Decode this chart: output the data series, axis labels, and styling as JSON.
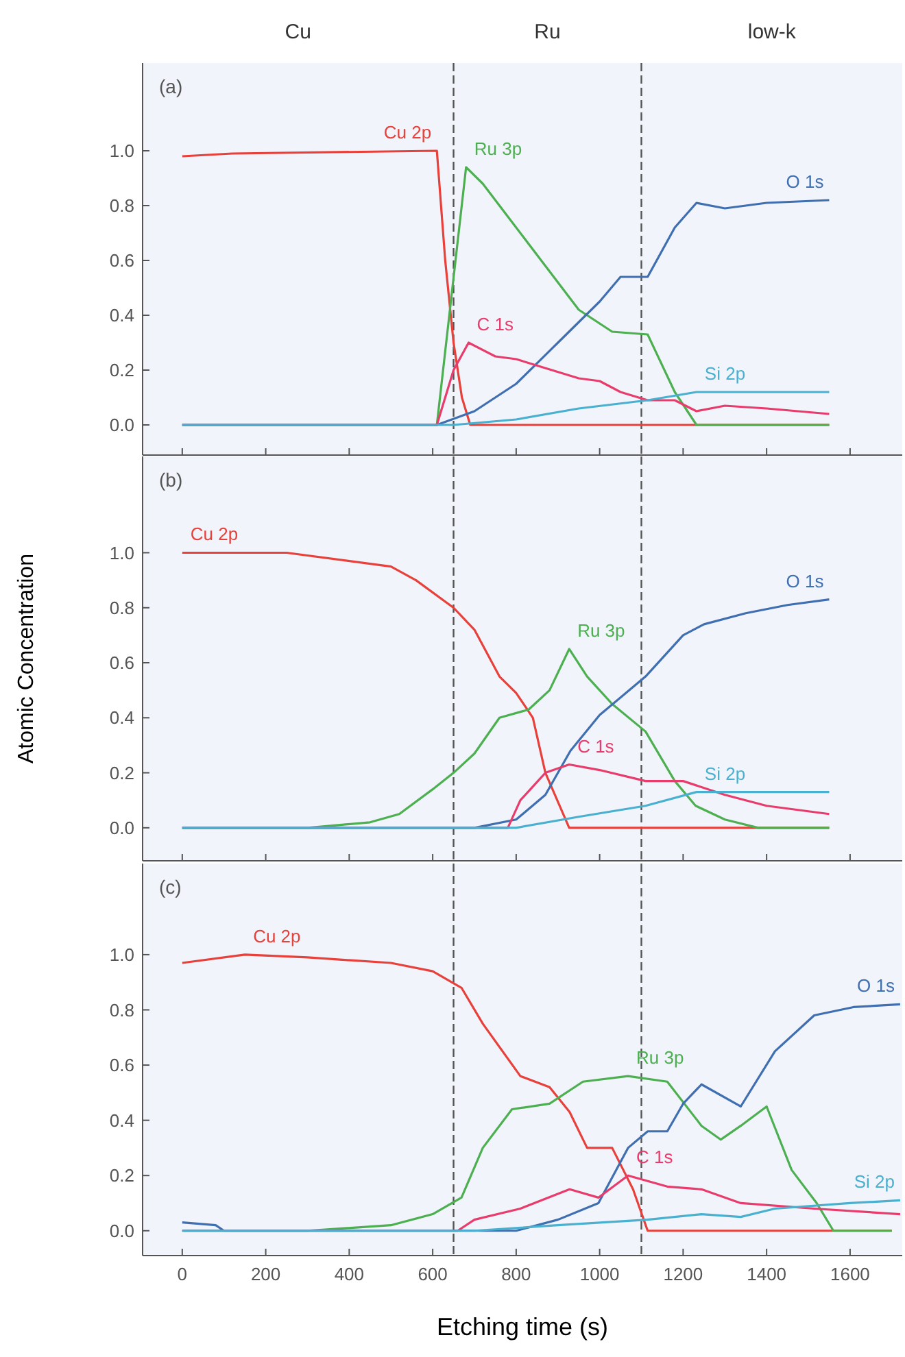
{
  "chart_data": [
    {
      "type": "line",
      "title": "(a)",
      "xlim": [
        -95,
        1725
      ],
      "ylim": [
        -0.11,
        1.32
      ],
      "tick_labels": "y",
      "xticks": [
        0,
        200,
        400,
        600,
        800,
        1000,
        1200,
        1400,
        1600
      ],
      "yticks": [
        {
          "value": 0,
          "label": "0.0"
        },
        {
          "value": 0.2,
          "label": "0.2"
        },
        {
          "value": 0.4,
          "label": "0.4"
        },
        {
          "value": 0.6,
          "label": "0.6"
        },
        {
          "value": 0.8,
          "label": "0.8"
        },
        {
          "value": 1,
          "label": "1.0"
        }
      ],
      "ref_lines": [
        {
          "axis": "x",
          "value": 650,
          "line_style": "dashed",
          "color": "#555555"
        },
        {
          "axis": "x",
          "value": 1100,
          "line_style": "dashed",
          "color": "#555555"
        }
      ],
      "series": [
        {
          "name": "Cu 2p",
          "color": "#e8403a",
          "x": [
            0,
            120,
            610,
            630,
            650,
            670,
            690,
            1550
          ],
          "values": [
            0.98,
            0.99,
            1.0,
            0.6,
            0.3,
            0.1,
            0,
            0
          ]
        },
        {
          "name": "Ru 3p",
          "color": "#4caf50",
          "x": [
            0,
            610,
            680,
            720,
            780,
            850,
            950,
            1030,
            1115,
            1180,
            1232,
            1550
          ],
          "values": [
            0,
            0,
            0.94,
            0.88,
            0.76,
            0.62,
            0.42,
            0.34,
            0.33,
            0.12,
            0,
            0
          ]
        },
        {
          "name": "O 1s",
          "color": "#3f6fb0",
          "x": [
            0,
            610,
            700,
            800,
            900,
            1000,
            1050,
            1115,
            1180,
            1232,
            1300,
            1400,
            1550
          ],
          "values": [
            0,
            0,
            0.05,
            0.15,
            0.3,
            0.45,
            0.54,
            0.54,
            0.72,
            0.81,
            0.79,
            0.81,
            0.82
          ]
        },
        {
          "name": "C 1s",
          "color": "#e83c6c",
          "x": [
            0,
            610,
            650,
            686,
            750,
            800,
            950,
            1000,
            1050,
            1115,
            1180,
            1232,
            1300,
            1400,
            1550
          ],
          "values": [
            0,
            0,
            0.2,
            0.3,
            0.25,
            0.24,
            0.17,
            0.16,
            0.12,
            0.09,
            0.09,
            0.05,
            0.07,
            0.06,
            0.04
          ]
        },
        {
          "name": "Si 2p",
          "color": "#4ab0d0",
          "x": [
            0,
            650,
            800,
            950,
            1115,
            1232,
            1400,
            1550
          ],
          "values": [
            0,
            0,
            0.02,
            0.06,
            0.09,
            0.12,
            0.12,
            0.12
          ]
        }
      ],
      "annotations": [
        "Cu",
        "Ru",
        "low-k"
      ]
    },
    {
      "type": "line",
      "title": "(b)",
      "ylabel": "Atomic Concentration",
      "xlim": [
        -95,
        1725
      ],
      "ylim": [
        -0.12,
        1.35
      ],
      "xticks": [
        0,
        200,
        400,
        600,
        800,
        1000,
        1200,
        1400,
        1600
      ],
      "yticks": [
        {
          "value": 0,
          "label": "0.0"
        },
        {
          "value": 0.2,
          "label": "0.2"
        },
        {
          "value": 0.4,
          "label": "0.4"
        },
        {
          "value": 0.6,
          "label": "0.6"
        },
        {
          "value": 0.8,
          "label": "0.8"
        },
        {
          "value": 1,
          "label": "1.0"
        }
      ],
      "ref_lines": [
        {
          "axis": "x",
          "value": 650,
          "line_style": "dashed",
          "color": "#555555"
        },
        {
          "axis": "x",
          "value": 1100,
          "line_style": "dashed",
          "color": "#555555"
        }
      ],
      "series": [
        {
          "name": "Cu 2p",
          "color": "#e8403a",
          "x": [
            0,
            250,
            500,
            560,
            650,
            700,
            760,
            800,
            840,
            870,
            927,
            1550
          ],
          "values": [
            1.0,
            1.0,
            0.95,
            0.9,
            0.8,
            0.72,
            0.55,
            0.49,
            0.4,
            0.2,
            0,
            0
          ]
        },
        {
          "name": "Ru 3p",
          "color": "#4caf50",
          "x": [
            0,
            300,
            450,
            520,
            600,
            650,
            700,
            760,
            830,
            880,
            927,
            970,
            1030,
            1110,
            1180,
            1230,
            1300,
            1380,
            1550
          ],
          "values": [
            0,
            0,
            0.02,
            0.05,
            0.14,
            0.2,
            0.27,
            0.4,
            0.43,
            0.5,
            0.65,
            0.55,
            0.45,
            0.35,
            0.17,
            0.08,
            0.03,
            0,
            0
          ]
        },
        {
          "name": "O 1s",
          "color": "#3f6fb0",
          "x": [
            0,
            700,
            800,
            870,
            930,
            1000,
            1110,
            1200,
            1250,
            1350,
            1450,
            1550
          ],
          "values": [
            0,
            0,
            0.03,
            0.12,
            0.28,
            0.41,
            0.55,
            0.7,
            0.74,
            0.78,
            0.81,
            0.83
          ]
        },
        {
          "name": "C 1s",
          "color": "#e83c6c",
          "x": [
            0,
            780,
            810,
            870,
            927,
            1000,
            1110,
            1200,
            1300,
            1400,
            1550
          ],
          "values": [
            0,
            0,
            0.1,
            0.2,
            0.23,
            0.21,
            0.17,
            0.17,
            0.12,
            0.08,
            0.05
          ]
        },
        {
          "name": "Si 2p",
          "color": "#4ab0d0",
          "x": [
            0,
            800,
            950,
            1110,
            1232,
            1550
          ],
          "values": [
            0,
            0,
            0.04,
            0.08,
            0.13,
            0.13
          ]
        }
      ],
      "tick_labels": "y"
    },
    {
      "type": "line",
      "xlabel": "Etching time (s)",
      "xlim": [
        -95,
        1725
      ],
      "ylim": [
        -0.09,
        1.33
      ],
      "xticks": [
        0,
        200,
        400,
        600,
        800,
        1000,
        1200,
        1400,
        1600
      ],
      "yticks": [
        {
          "value": 0,
          "label": "0.0"
        },
        {
          "value": 0.2,
          "label": "0.2"
        },
        {
          "value": 0.4,
          "label": "0.4"
        },
        {
          "value": 0.6,
          "label": "0.6"
        },
        {
          "value": 0.8,
          "label": "0.8"
        },
        {
          "value": 1,
          "label": "1.0"
        }
      ],
      "ref_lines": [
        {
          "axis": "x",
          "value": 650,
          "line_style": "dashed",
          "color": "#555555"
        },
        {
          "axis": "x",
          "value": 1100,
          "line_style": "dashed",
          "color": "#555555"
        }
      ],
      "series": [
        {
          "name": "Cu 2p",
          "color": "#e8403a",
          "x": [
            0,
            150,
            300,
            500,
            600,
            669,
            720,
            810,
            880,
            928,
            970,
            1030,
            1080,
            1115,
            1700
          ],
          "values": [
            0.97,
            1.0,
            0.99,
            0.97,
            0.94,
            0.88,
            0.75,
            0.56,
            0.52,
            0.43,
            0.3,
            0.3,
            0.15,
            0,
            0
          ]
        },
        {
          "name": "Ru 3p",
          "color": "#4caf50",
          "x": [
            0,
            300,
            500,
            600,
            669,
            720,
            790,
            880,
            960,
            1068,
            1162,
            1244,
            1290,
            1338,
            1400,
            1460,
            1520,
            1560,
            1700
          ],
          "values": [
            0,
            0,
            0.02,
            0.06,
            0.12,
            0.3,
            0.44,
            0.46,
            0.54,
            0.56,
            0.54,
            0.38,
            0.33,
            0.38,
            0.45,
            0.22,
            0.1,
            0,
            0
          ]
        },
        {
          "name": "O 1s",
          "color": "#3f6fb0",
          "x": [
            0,
            80,
            100,
            800,
            900,
            997,
            1068,
            1115,
            1162,
            1200,
            1244,
            1338,
            1420,
            1514,
            1608,
            1720
          ],
          "values": [
            0.03,
            0.02,
            0,
            0,
            0.04,
            0.1,
            0.3,
            0.36,
            0.36,
            0.46,
            0.53,
            0.45,
            0.65,
            0.78,
            0.81,
            0.82
          ]
        },
        {
          "name": "C 1s",
          "color": "#e83c6c",
          "x": [
            0,
            660,
            700,
            810,
            928,
            997,
            1068,
            1162,
            1244,
            1338,
            1514,
            1720
          ],
          "values": [
            0,
            0,
            0.04,
            0.08,
            0.15,
            0.12,
            0.2,
            0.16,
            0.15,
            0.1,
            0.08,
            0.06
          ]
        },
        {
          "name": "Si 2p",
          "color": "#4ab0d0",
          "x": [
            0,
            700,
            900,
            1115,
            1244,
            1338,
            1420,
            1600,
            1720
          ],
          "values": [
            0,
            0,
            0.02,
            0.04,
            0.06,
            0.05,
            0.08,
            0.1,
            0.11
          ]
        }
      ],
      "title": "(c)"
    }
  ]
}
